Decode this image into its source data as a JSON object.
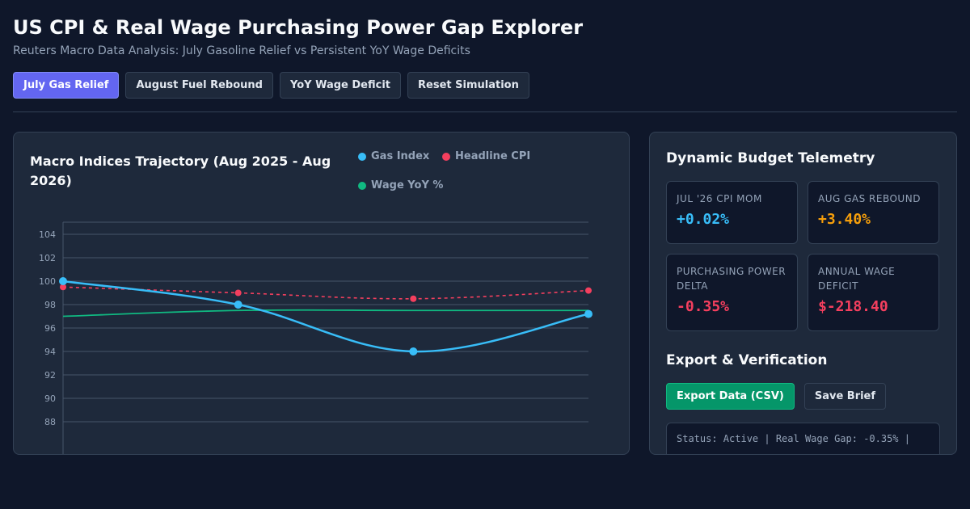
{
  "header": {
    "title": "US CPI & Real Wage Purchasing Power Gap Explorer",
    "subtitle": "Reuters Macro Data Analysis: July Gasoline Relief vs Persistent YoY Wage Deficits"
  },
  "scenarios": [
    {
      "label": "July Gas Relief",
      "active": true
    },
    {
      "label": "August Fuel Rebound",
      "active": false
    },
    {
      "label": "YoY Wage Deficit",
      "active": false
    },
    {
      "label": "Reset Simulation",
      "active": false
    }
  ],
  "chart_panel": {
    "title": "Macro Indices Trajectory (Aug 2025 - Aug 2026)"
  },
  "colors": {
    "gas": "#38bdf8",
    "cpi": "#f43f5e",
    "wage": "#10b981",
    "accent": "#6366f1"
  },
  "chart_data": {
    "type": "line",
    "yticks": [
      88,
      90,
      92,
      94,
      96,
      98,
      100,
      102,
      104
    ],
    "ylim": [
      86,
      105
    ],
    "grid": true,
    "legend_position": "top-right",
    "series": [
      {
        "name": "Gas Index",
        "values": [
          100,
          98,
          94,
          97.2
        ],
        "color": "#38bdf8",
        "style": "solid",
        "markers": true
      },
      {
        "name": "Headline CPI",
        "values": [
          99.5,
          99,
          98.5,
          99.2
        ],
        "color": "#f43f5e",
        "style": "dashed",
        "markers": true
      },
      {
        "name": "Wage YoY %",
        "values": [
          97,
          97.5,
          97.5,
          97.5
        ],
        "color": "#10b981",
        "style": "solid",
        "markers": false
      }
    ]
  },
  "telemetry": {
    "title": "Dynamic Budget Telemetry",
    "metrics": [
      {
        "label": "JUL '26 CPI MOM",
        "value": "+0.02%",
        "color": "#38bdf8"
      },
      {
        "label": "AUG GAS REBOUND",
        "value": "+3.40%",
        "color": "#f59e0b"
      },
      {
        "label": "PURCHASING POWER DELTA",
        "value": "-0.35%",
        "color": "#f43f5e"
      },
      {
        "label": "ANNUAL WAGE DEFICIT",
        "value": "$-218.40",
        "color": "#f43f5e"
      }
    ]
  },
  "export": {
    "title": "Export & Verification",
    "export_label": "Export Data (CSV)",
    "save_label": "Save Brief",
    "status": "Status: Active | Real Wage Gap: -0.35% |"
  }
}
